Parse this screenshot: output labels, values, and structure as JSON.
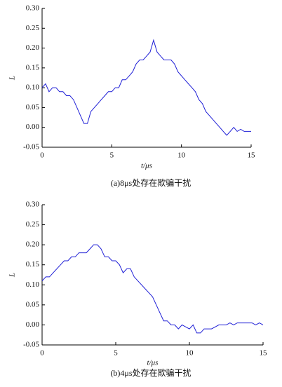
{
  "chart_data": [
    {
      "type": "line",
      "title": "(a)8μs处存在欺骗干扰",
      "xlabel": "t/μs",
      "ylabel": "L",
      "x": [
        0,
        0.25,
        0.5,
        0.75,
        1,
        1.25,
        1.5,
        1.75,
        2,
        2.25,
        2.5,
        2.75,
        3,
        3.25,
        3.5,
        3.75,
        4,
        4.25,
        4.5,
        4.75,
        5,
        5.25,
        5.5,
        5.75,
        6,
        6.25,
        6.5,
        6.75,
        7,
        7.25,
        7.5,
        7.75,
        8,
        8.25,
        8.5,
        8.75,
        9,
        9.25,
        9.5,
        9.75,
        10,
        10.25,
        10.5,
        10.75,
        11,
        11.25,
        11.5,
        11.75,
        12,
        12.25,
        12.5,
        12.75,
        13,
        13.25,
        13.5,
        13.75,
        14,
        14.25,
        14.5,
        14.75,
        15
      ],
      "series": [
        {
          "color": "#1f1fd6",
          "values": [
            0.1,
            0.11,
            0.09,
            0.1,
            0.1,
            0.09,
            0.09,
            0.08,
            0.08,
            0.07,
            0.05,
            0.03,
            0.01,
            0.01,
            0.04,
            0.05,
            0.06,
            0.07,
            0.08,
            0.09,
            0.09,
            0.1,
            0.1,
            0.12,
            0.12,
            0.13,
            0.14,
            0.16,
            0.17,
            0.17,
            0.18,
            0.19,
            0.22,
            0.19,
            0.18,
            0.17,
            0.17,
            0.17,
            0.16,
            0.14,
            0.13,
            0.12,
            0.11,
            0.1,
            0.09,
            0.07,
            0.06,
            0.04,
            0.03,
            0.02,
            0.01,
            0.0,
            -0.01,
            -0.02,
            -0.01,
            0.0,
            -0.01,
            -0.005,
            -0.01,
            -0.01,
            -0.01
          ]
        }
      ],
      "xlim": [
        0,
        15
      ],
      "xticks": [
        0,
        5,
        10,
        15
      ],
      "ylim": [
        -0.05,
        0.3
      ],
      "yticks": [
        {
          "value": -0.05,
          "label": "-0.05"
        },
        {
          "value": 0,
          "label": "0.00"
        },
        {
          "value": 0.05,
          "label": "0.05"
        },
        {
          "value": 0.1,
          "label": "0.10"
        },
        {
          "value": 0.15,
          "label": "0.15"
        },
        {
          "value": 0.2,
          "label": "0.20"
        },
        {
          "value": 0.25,
          "label": "0.25"
        },
        {
          "value": 0.3,
          "label": "0.30"
        }
      ]
    },
    {
      "type": "line",
      "title": "(b)4μs处存在欺骗干扰",
      "xlabel": "t/μs",
      "ylabel": "L",
      "x": [
        0,
        0.25,
        0.5,
        0.75,
        1,
        1.25,
        1.5,
        1.75,
        2,
        2.25,
        2.5,
        2.75,
        3,
        3.25,
        3.5,
        3.75,
        4,
        4.25,
        4.5,
        4.75,
        5,
        5.25,
        5.5,
        5.75,
        6,
        6.25,
        6.5,
        6.75,
        7,
        7.25,
        7.5,
        7.75,
        8,
        8.25,
        8.5,
        8.75,
        9,
        9.25,
        9.5,
        9.75,
        10,
        10.25,
        10.5,
        10.75,
        11,
        11.25,
        11.5,
        11.75,
        12,
        12.25,
        12.5,
        12.75,
        13,
        13.25,
        13.5,
        13.75,
        14,
        14.25,
        14.5,
        14.75,
        15
      ],
      "series": [
        {
          "color": "#1f1fd6",
          "values": [
            0.11,
            0.12,
            0.12,
            0.13,
            0.14,
            0.15,
            0.16,
            0.16,
            0.17,
            0.17,
            0.18,
            0.18,
            0.18,
            0.19,
            0.2,
            0.2,
            0.19,
            0.17,
            0.17,
            0.16,
            0.16,
            0.15,
            0.13,
            0.14,
            0.14,
            0.12,
            0.11,
            0.1,
            0.09,
            0.08,
            0.07,
            0.05,
            0.03,
            0.01,
            0.01,
            0.0,
            0.0,
            -0.01,
            0.0,
            -0.005,
            -0.01,
            0.0,
            -0.02,
            -0.02,
            -0.01,
            -0.01,
            -0.01,
            -0.005,
            0.0,
            0.0,
            0.0,
            0.005,
            0.0,
            0.005,
            0.005,
            0.005,
            0.005,
            0.005,
            0.0,
            0.005,
            0.0
          ]
        }
      ],
      "xlim": [
        0,
        15
      ],
      "xticks": [
        0,
        5,
        10,
        15
      ],
      "ylim": [
        -0.05,
        0.3
      ],
      "yticks": [
        {
          "value": -0.05,
          "label": "-0.05"
        },
        {
          "value": 0,
          "label": "0.00"
        },
        {
          "value": 0.05,
          "label": "0.05"
        },
        {
          "value": 0.1,
          "label": "0.10"
        },
        {
          "value": 0.15,
          "label": "0.15"
        },
        {
          "value": 0.2,
          "label": "0.20"
        },
        {
          "value": 0.25,
          "label": "0.25"
        },
        {
          "value": 0.3,
          "label": "0.30"
        }
      ]
    }
  ]
}
